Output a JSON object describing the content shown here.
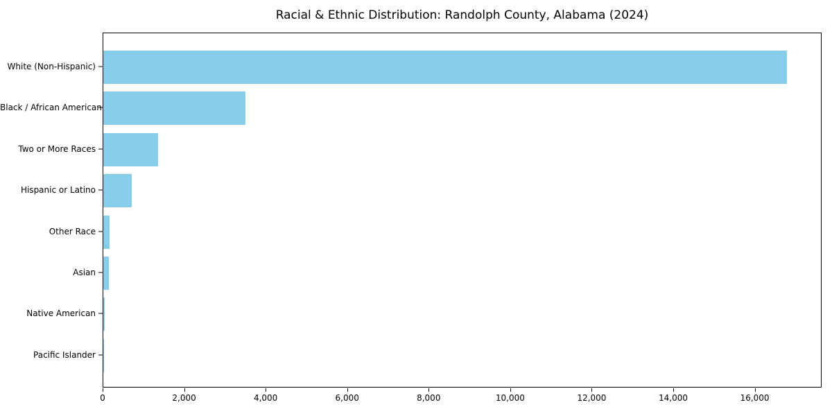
{
  "chart_data": {
    "type": "bar",
    "orientation": "horizontal",
    "title": "Racial & Ethnic Distribution: Randolph County, Alabama (2024)",
    "xlabel": "",
    "ylabel": "",
    "categories": [
      "White (Non-Hispanic)",
      "Black / African American",
      "Two or More Races",
      "Hispanic or Latino",
      "Other Race",
      "Asian",
      "Native American",
      "Pacific Islander"
    ],
    "values": [
      16800,
      3500,
      1340,
      700,
      150,
      130,
      30,
      5
    ],
    "xlim": [
      0,
      17640
    ],
    "xticks": [
      0,
      2000,
      4000,
      6000,
      8000,
      10000,
      12000,
      14000,
      16000
    ],
    "xtick_labels": [
      "0",
      "2,000",
      "4,000",
      "6,000",
      "8,000",
      "10,000",
      "12,000",
      "14,000",
      "16,000"
    ],
    "bar_color": "#87CEEB",
    "grid": false,
    "legend": "none",
    "background_color": "#ffffff",
    "axis_color": "#000000"
  }
}
